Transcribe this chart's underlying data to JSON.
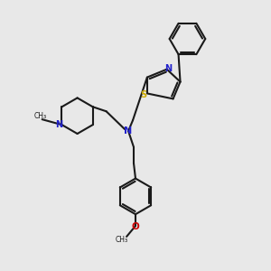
{
  "bg_color": "#e8e8e8",
  "bond_color": "#1a1a1a",
  "N_color": "#2222cc",
  "S_color": "#ccaa00",
  "O_color": "#cc0000",
  "lw": 1.5,
  "xlim": [
    0,
    3
  ],
  "ylim": [
    0,
    3
  ]
}
